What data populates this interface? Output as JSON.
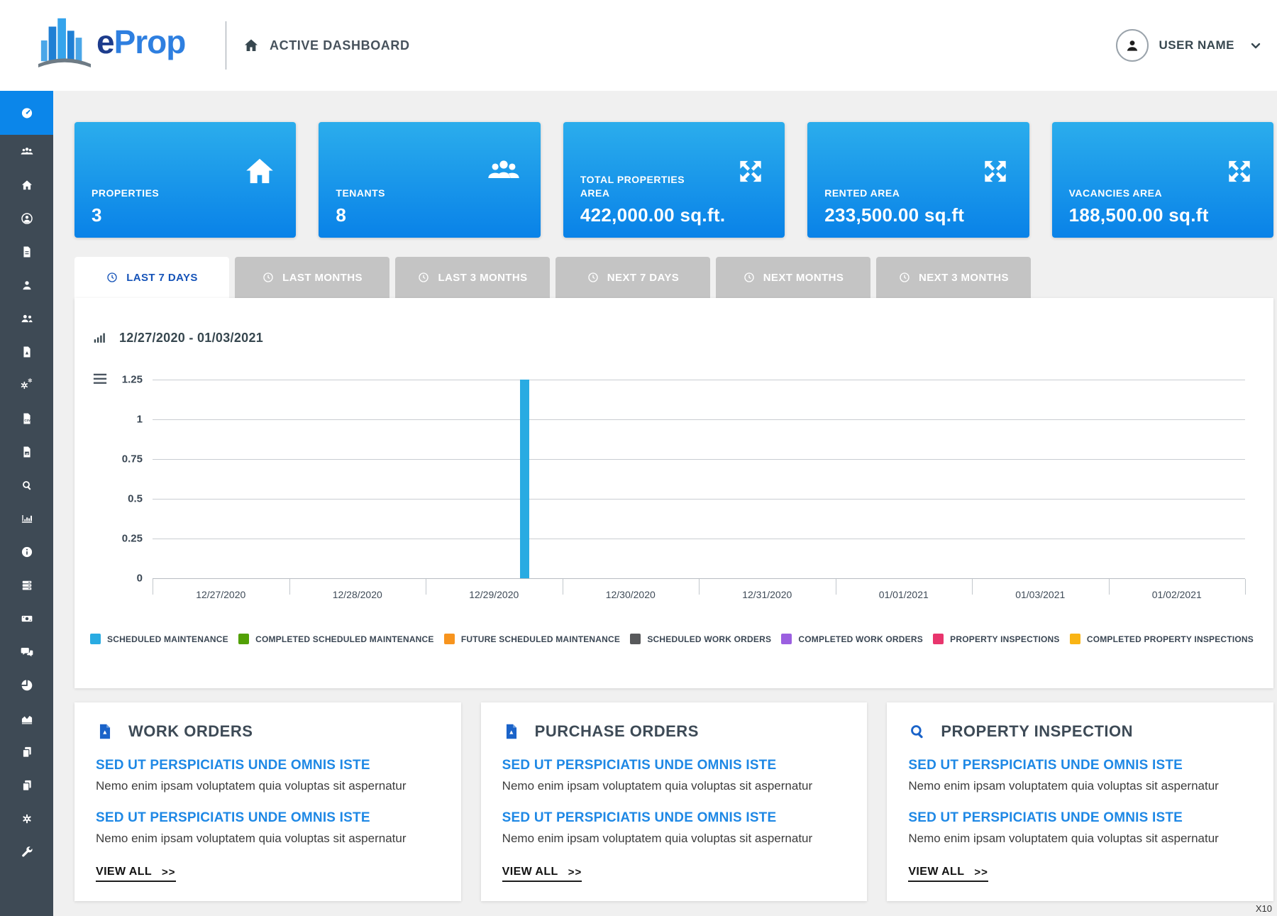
{
  "header": {
    "logo_e": "e",
    "logo_prop": "Prop",
    "nav_title": "ACTIVE DASHBOARD",
    "user_name": "USER NAME"
  },
  "sidebar": {
    "active_item": "dashboard",
    "items": [
      "dashboard",
      "users-group",
      "home",
      "account",
      "document",
      "person",
      "people",
      "file-pdf",
      "cogs",
      "file-csv",
      "file-image",
      "search",
      "bar-chart",
      "info",
      "server",
      "money",
      "chat",
      "pie-chart",
      "area-chart",
      "copy",
      "copy-2",
      "settings",
      "wrench"
    ]
  },
  "stat_cards": [
    {
      "label": "PROPERTIES",
      "value": "3",
      "icon": "home-icon"
    },
    {
      "label": "TENANTS",
      "value": "8",
      "icon": "users-icon"
    },
    {
      "label": "TOTAL PROPERTIES AREA",
      "value": "422,000.00 sq.ft.",
      "icon": "expand-arrows-icon"
    },
    {
      "label": "RENTED AREA",
      "value": "233,500.00 sq.ft",
      "icon": "expand-arrows-icon"
    },
    {
      "label": "VACANCIES AREA",
      "value": "188,500.00 sq.ft",
      "icon": "expand-arrows-icon"
    }
  ],
  "tabs": [
    {
      "label": "LAST 7 DAYS",
      "active": true
    },
    {
      "label": "LAST MONTHS",
      "active": false
    },
    {
      "label": "LAST 3 MONTHS",
      "active": false
    },
    {
      "label": "NEXT 7 DAYS",
      "active": false
    },
    {
      "label": "NEXT MONTHS",
      "active": false
    },
    {
      "label": "NEXT 3 MONTHS",
      "active": false
    }
  ],
  "chart_data": {
    "type": "bar",
    "title": "12/27/2020 - 01/03/2021",
    "categories": [
      "12/27/2020",
      "12/28/2020",
      "12/29/2020",
      "12/30/2020",
      "12/31/2020",
      "01/01/2021",
      "01/03/2021",
      "01/02/2021"
    ],
    "series": [
      {
        "name": "SCHEDULED MAINTENANCE",
        "color": "#29abe2",
        "values": [
          0,
          0,
          1.25,
          0,
          0,
          0,
          0,
          0
        ]
      },
      {
        "name": "COMPLETED SCHEDULED MAINTENANCE",
        "color": "#52a005",
        "values": [
          0,
          0,
          0,
          0,
          0,
          0,
          0,
          0
        ]
      },
      {
        "name": "FUTURE SCHEDULED MAINTENANCE",
        "color": "#f7941e",
        "values": [
          0,
          0,
          0,
          0,
          0,
          0,
          0,
          0
        ]
      },
      {
        "name": "SCHEDULED WORK ORDERS",
        "color": "#58595b",
        "values": [
          0,
          0,
          0,
          0,
          0,
          0,
          0,
          0
        ]
      },
      {
        "name": "COMPLETED WORK ORDERS",
        "color": "#9b5fe0",
        "values": [
          0,
          0,
          0,
          0,
          0,
          0,
          0,
          0
        ]
      },
      {
        "name": "PROPERTY INSPECTIONS",
        "color": "#e8356d",
        "values": [
          0,
          0,
          0,
          0,
          0,
          0,
          0,
          0
        ]
      },
      {
        "name": "COMPLETED PROPERTY INSPECTIONS",
        "color": "#f9b414",
        "values": [
          0,
          0,
          0,
          0,
          0,
          0,
          0,
          0
        ]
      }
    ],
    "ylim": [
      0,
      1.25
    ],
    "ytick_labels": [
      "1.25",
      "1",
      "0.75",
      "0.5",
      "0.25",
      "0"
    ],
    "grid": true,
    "legend_position": "bottom"
  },
  "panels": [
    {
      "title": "WORK ORDERS",
      "icon": "file-pdf-icon",
      "entries": [
        {
          "headline": "SED UT PERSPICIATIS UNDE OMNIS ISTE",
          "text": "Nemo enim ipsam voluptatem quia voluptas sit aspernatur"
        },
        {
          "headline": "SED UT PERSPICIATIS UNDE OMNIS ISTE",
          "text": "Nemo enim ipsam voluptatem quia voluptas sit aspernatur"
        }
      ],
      "view_all": "VIEW ALL",
      "view_all_arrows": ">>"
    },
    {
      "title": "PURCHASE ORDERS",
      "icon": "file-pdf-icon",
      "entries": [
        {
          "headline": "SED UT PERSPICIATIS UNDE OMNIS ISTE",
          "text": "Nemo enim ipsam voluptatem quia voluptas sit aspernatur"
        },
        {
          "headline": "SED UT PERSPICIATIS UNDE OMNIS ISTE",
          "text": "Nemo enim ipsam voluptatem quia voluptas sit aspernatur"
        }
      ],
      "view_all": "VIEW ALL",
      "view_all_arrows": ">>"
    },
    {
      "title": "PROPERTY INSPECTION",
      "icon": "search-icon",
      "entries": [
        {
          "headline": "SED UT PERSPICIATIS UNDE OMNIS ISTE",
          "text": "Nemo enim ipsam voluptatem quia voluptas sit aspernatur"
        },
        {
          "headline": "SED UT PERSPICIATIS UNDE OMNIS ISTE",
          "text": "Nemo enim ipsam voluptatem quia voluptas sit aspernatur"
        }
      ],
      "view_all": "VIEW ALL",
      "view_all_arrows": ">>"
    }
  ],
  "footer_note": "X10",
  "colors": {
    "card_gradient_top": "#2badec",
    "card_gradient_bottom": "#0982e8",
    "sidebar_bg": "#3e4a55",
    "sidebar_active": "#0b86ea",
    "page_bg": "#f0f0f0",
    "tab_inactive": "#c4c4c4",
    "tab_active_text": "#1553b8",
    "headline_blue": "#1e88e5",
    "bar_blue": "#29abe2"
  }
}
